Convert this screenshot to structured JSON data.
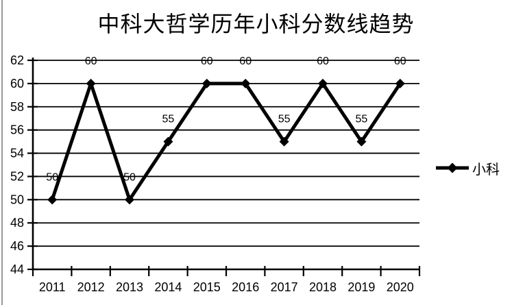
{
  "window": {
    "background": "#ffffff",
    "left_border_color": "#999999"
  },
  "chart_data": {
    "type": "line",
    "title": "中科大哲学历年小科分数线趋势",
    "categories": [
      "2011",
      "2012",
      "2013",
      "2014",
      "2015",
      "2016",
      "2017",
      "2018",
      "2019",
      "2020"
    ],
    "series": [
      {
        "name": "小科",
        "values": [
          50,
          60,
          50,
          55,
          60,
          60,
          55,
          60,
          55,
          60
        ],
        "color": "#000000",
        "marker": "diamond"
      }
    ],
    "xlabel": "",
    "ylabel": "",
    "ylim": [
      44,
      62
    ],
    "yticks": [
      44,
      46,
      48,
      50,
      52,
      54,
      56,
      58,
      60,
      62
    ],
    "grid": "horizontal",
    "data_labels": true,
    "data_label_position": "above",
    "legend_position": "right",
    "colors": {
      "series": "#000000",
      "grid": "#000000",
      "axis": "#000000",
      "text": "#000000",
      "background": "#ffffff"
    }
  }
}
